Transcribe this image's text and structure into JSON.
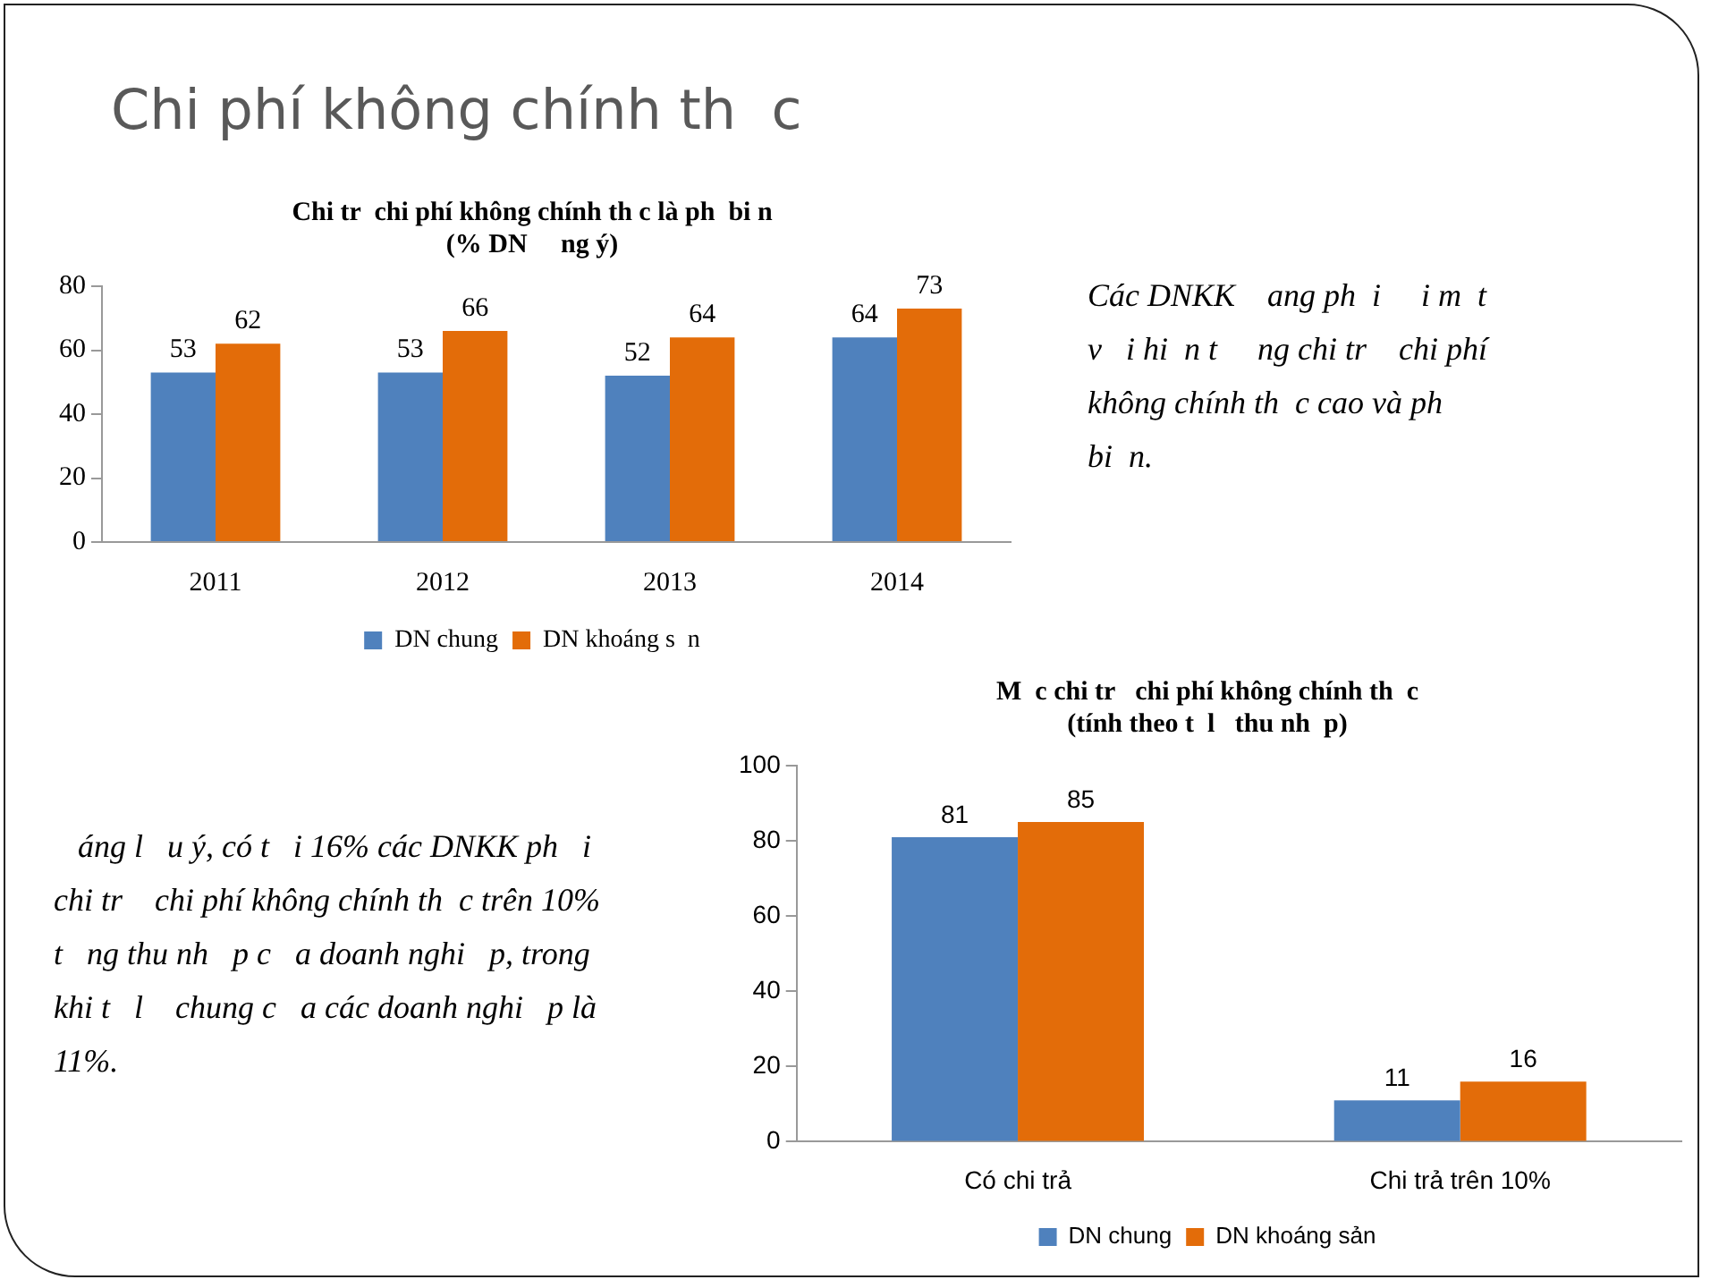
{
  "chart_data": [
    {
      "type": "bar",
      "title": "Chi tr  chi phí không chính th c là ph  bi n\n(% DN     ng ý)",
      "categories": [
        "2011",
        "2012",
        "2013",
        "2014"
      ],
      "series": [
        {
          "name": "DN chung",
          "color": "#4f81bd",
          "values": [
            53,
            53,
            52,
            64
          ]
        },
        {
          "name": "DN khoáng s  n",
          "color": "#e36c09",
          "values": [
            62,
            66,
            64,
            73
          ]
        }
      ],
      "ylim": [
        0,
        80
      ],
      "yticks": [
        0,
        20,
        40,
        60,
        80
      ],
      "grid": false,
      "legend": "bottom",
      "data_labels": true,
      "annotations": [
        "Chi phí không chính th  c",
        "Các DNKK    ang ph  i     i m  t\nv   i hi  n t     ng chi tr    chi phí\nkhông chính th  c cao và ph\nbi  n."
      ]
    },
    {
      "type": "bar",
      "title": "M  c chi tr   chi phí không chính th  c\n(tính theo t  l   thu nh  p)",
      "categories": [
        "Có chi trả",
        "Chi trả trên 10%"
      ],
      "series": [
        {
          "name": "DN chung",
          "color": "#4f81bd",
          "values": [
            81,
            11
          ]
        },
        {
          "name": "DN khoáng sản",
          "color": "#e36c09",
          "values": [
            85,
            16
          ]
        }
      ],
      "ylim": [
        0,
        100
      ],
      "yticks": [
        0,
        20,
        40,
        60,
        80,
        100
      ],
      "grid": false,
      "legend": "bottom",
      "data_labels": true,
      "annotations": [
        "   áng l   u ý, có t   i 16% các DNKK ph   i\nchi tr    chi phí không chính th  c trên 10%\nt   ng thu nh   p c   a doanh nghi   p, trong\nkhi t   l    chung c   a các doanh nghi   p là\n11%."
      ]
    }
  ]
}
